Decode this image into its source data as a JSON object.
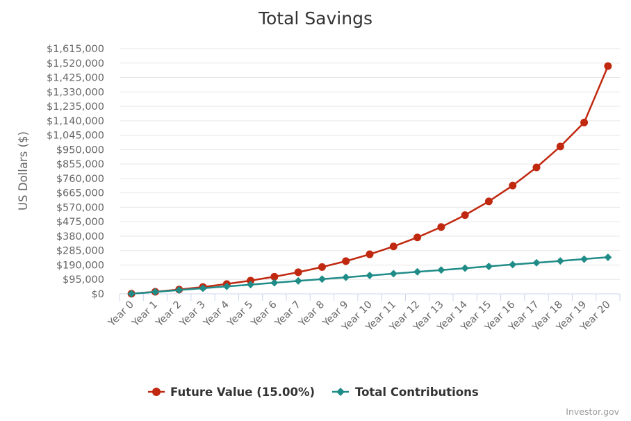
{
  "chart_data": {
    "type": "line",
    "title": "Total Savings",
    "ylabel": "US Dollars ($)",
    "xlabel": "",
    "categories": [
      "Year 0",
      "Year 1",
      "Year 2",
      "Year 3",
      "Year 4",
      "Year 5",
      "Year 6",
      "Year 7",
      "Year 8",
      "Year 9",
      "Year 10",
      "Year 11",
      "Year 12",
      "Year 13",
      "Year 14",
      "Year 15",
      "Year 16",
      "Year 17",
      "Year 18",
      "Year 19",
      "Year 20"
    ],
    "ylim": [
      0,
      1615000
    ],
    "yticks": [
      0,
      95000,
      190000,
      285000,
      380000,
      475000,
      570000,
      665000,
      760000,
      855000,
      950000,
      1045000,
      1140000,
      1235000,
      1330000,
      1425000,
      1520000,
      1615000
    ],
    "ytick_labels": [
      "$0",
      "$95,000",
      "$190,000",
      "$285,000",
      "$380,000",
      "$475,000",
      "$570,000",
      "$665,000",
      "$760,000",
      "$855,000",
      "$950,000",
      "$1,045,000",
      "$1,140,000",
      "$1,235,000",
      "$1,330,000",
      "$1,425,000",
      "$1,520,000",
      "$1,615,000"
    ],
    "grid": true,
    "legend_position": "bottom-center",
    "series": [
      {
        "name": "Future Value (15.00%)",
        "color": "#c0280f",
        "marker": "circle",
        "values": [
          1000,
          13800,
          28500,
          45400,
          64800,
          87200,
          112900,
          142400,
          176500,
          215600,
          260500,
          312300,
          371800,
          440100,
          518800,
          609200,
          713200,
          832800,
          970300,
          1128500,
          1500000
        ]
      },
      {
        "name": "Total Contributions",
        "color": "#1f8c88",
        "marker": "diamond",
        "values": [
          1000,
          13000,
          25000,
          37000,
          49000,
          61000,
          73000,
          85000,
          97000,
          109000,
          121000,
          133000,
          145000,
          157000,
          169000,
          181000,
          193000,
          205000,
          217000,
          229000,
          241000
        ]
      }
    ],
    "credit": "Investor.gov"
  }
}
